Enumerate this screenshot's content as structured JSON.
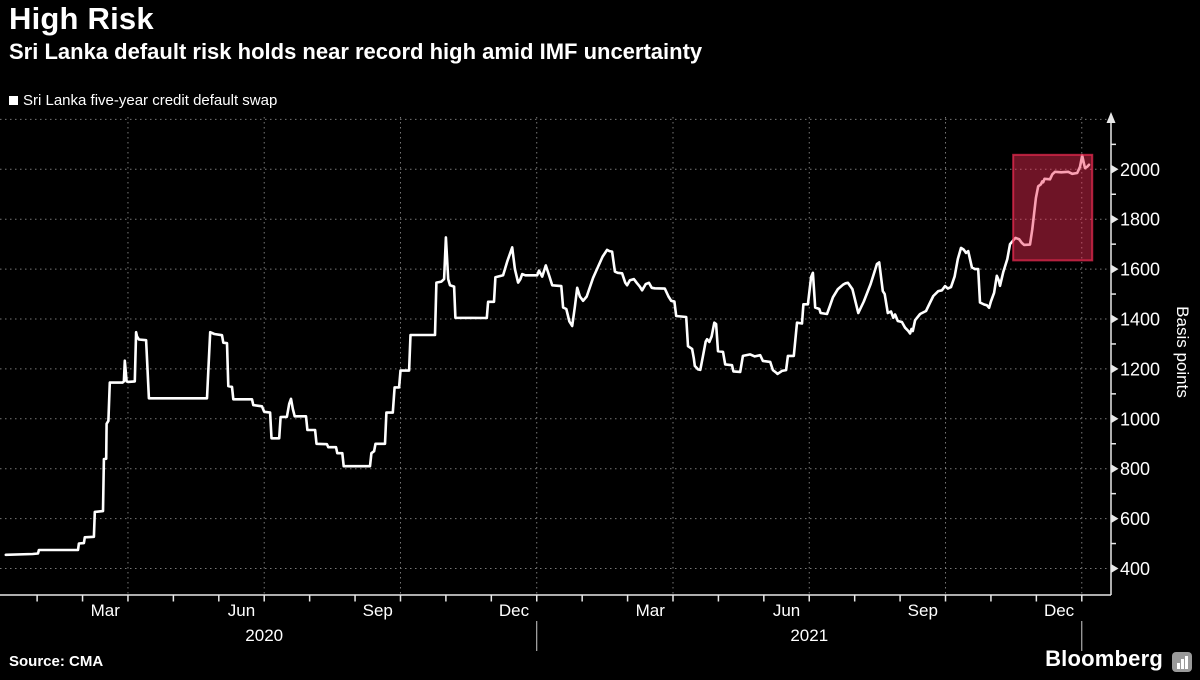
{
  "header": {
    "title": "High Risk",
    "subtitle": "Sri Lanka default risk holds near record high amid IMF uncertainty"
  },
  "legend": {
    "label": "Sri Lanka five-year credit default swap",
    "marker_color": "#ffffff"
  },
  "footer": {
    "source": "Source: CMA",
    "brand": "Bloomberg"
  },
  "colors": {
    "background": "#000000",
    "series_line": "#ffffff",
    "grid": "#787878",
    "axis": "#e8e8e8",
    "text": "#ffffff",
    "highlight_fill": "rgba(244,44,84,0.45)",
    "highlight_stroke": "rgba(244,44,84,0.7)"
  },
  "chart_data": {
    "type": "line",
    "title": "High Risk",
    "subtitle": "Sri Lanka default risk holds near record high amid IMF uncertainty",
    "ylabel": "Basis points",
    "x_unit": "months since Jan 2020 (0 = Jan 1 2020)",
    "ylim": [
      300,
      2200
    ],
    "xlim_months": [
      0,
      24.5
    ],
    "grid": true,
    "legend_position": "top-left",
    "y_tick_labels": [
      400,
      600,
      800,
      1000,
      1200,
      1400,
      1600,
      1800,
      2000
    ],
    "y_minor_ticks": [
      500,
      700,
      900,
      1100,
      1300,
      1500,
      1700,
      1900,
      2100
    ],
    "grid_values_y": [
      400,
      600,
      800,
      1000,
      1200,
      1400,
      1600,
      1800,
      2000,
      2200
    ],
    "grid_months_x": [
      3,
      6,
      9,
      12,
      15,
      18,
      21,
      24
    ],
    "month_ticks": [
      1,
      2,
      3,
      4,
      5,
      6,
      7,
      8,
      9,
      10,
      11,
      12,
      13,
      14,
      15,
      16,
      17,
      18,
      19,
      20,
      21,
      22,
      23,
      24
    ],
    "year_separators_m": [
      12,
      24
    ],
    "x_labels": [
      {
        "label": "Mar",
        "m": 2.5
      },
      {
        "label": "Jun",
        "m": 5.5
      },
      {
        "label": "Sep",
        "m": 8.5
      },
      {
        "label": "Dec",
        "m": 11.5
      },
      {
        "label": "Mar",
        "m": 14.5
      },
      {
        "label": "Jun",
        "m": 17.5
      },
      {
        "label": "Sep",
        "m": 20.5
      },
      {
        "label": "Dec",
        "m": 23.5
      }
    ],
    "year_labels": [
      {
        "label": "2020",
        "m": 6.0
      },
      {
        "label": "2021",
        "m": 18.0
      }
    ],
    "highlight_box": {
      "m_start": 22.49,
      "m_end": 24.23,
      "v_low": 1635,
      "v_high": 2058
    },
    "series": [
      {
        "name": "Sri Lanka five-year credit default swap",
        "color": "#ffffff",
        "points": [
          [
            0.31,
            455
          ],
          [
            0.9,
            458
          ],
          [
            1.02,
            460
          ],
          [
            1.04,
            474
          ],
          [
            1.9,
            474
          ],
          [
            1.92,
            500
          ],
          [
            2.03,
            502
          ],
          [
            2.05,
            525
          ],
          [
            2.25,
            527
          ],
          [
            2.27,
            627
          ],
          [
            2.45,
            630
          ],
          [
            2.47,
            838
          ],
          [
            2.52,
            840
          ],
          [
            2.53,
            980
          ],
          [
            2.57,
            992
          ],
          [
            2.6,
            1145
          ],
          [
            2.88,
            1145
          ],
          [
            2.91,
            1150
          ],
          [
            2.93,
            1233
          ],
          [
            2.97,
            1150
          ],
          [
            3.0,
            1148
          ],
          [
            3.15,
            1150
          ],
          [
            3.18,
            1347
          ],
          [
            3.2,
            1330
          ],
          [
            3.24,
            1318
          ],
          [
            3.4,
            1315
          ],
          [
            3.43,
            1200
          ],
          [
            3.46,
            1082
          ],
          [
            4.74,
            1082
          ],
          [
            4.77,
            1200
          ],
          [
            4.81,
            1347
          ],
          [
            4.9,
            1340
          ],
          [
            5.07,
            1335
          ],
          [
            5.1,
            1305
          ],
          [
            5.18,
            1303
          ],
          [
            5.21,
            1131
          ],
          [
            5.29,
            1128
          ],
          [
            5.32,
            1078
          ],
          [
            5.73,
            1078
          ],
          [
            5.76,
            1055
          ],
          [
            5.95,
            1050
          ],
          [
            6.0,
            1028
          ],
          [
            6.13,
            1025
          ],
          [
            6.16,
            922
          ],
          [
            6.33,
            922
          ],
          [
            6.36,
            1007
          ],
          [
            6.5,
            1008
          ],
          [
            6.55,
            1060
          ],
          [
            6.59,
            1080
          ],
          [
            6.63,
            1040
          ],
          [
            6.67,
            1010
          ],
          [
            6.92,
            1010
          ],
          [
            6.95,
            955
          ],
          [
            7.12,
            955
          ],
          [
            7.15,
            900
          ],
          [
            7.38,
            898
          ],
          [
            7.41,
            886
          ],
          [
            7.58,
            886
          ],
          [
            7.61,
            862
          ],
          [
            7.72,
            862
          ],
          [
            7.75,
            810
          ],
          [
            8.33,
            810
          ],
          [
            8.36,
            862
          ],
          [
            8.42,
            870
          ],
          [
            8.45,
            900
          ],
          [
            8.66,
            900
          ],
          [
            8.69,
            1025
          ],
          [
            8.83,
            1025
          ],
          [
            8.87,
            1126
          ],
          [
            8.97,
            1126
          ],
          [
            9.0,
            1193
          ],
          [
            9.19,
            1193
          ],
          [
            9.22,
            1336
          ],
          [
            9.76,
            1336
          ],
          [
            9.79,
            1546
          ],
          [
            9.9,
            1550
          ],
          [
            9.96,
            1560
          ],
          [
            10.0,
            1727
          ],
          [
            10.05,
            1560
          ],
          [
            10.09,
            1535
          ],
          [
            10.18,
            1530
          ],
          [
            10.21,
            1405
          ],
          [
            10.9,
            1404
          ],
          [
            10.93,
            1469
          ],
          [
            11.06,
            1469
          ],
          [
            11.09,
            1567
          ],
          [
            11.26,
            1575
          ],
          [
            11.35,
            1630
          ],
          [
            11.46,
            1687
          ],
          [
            11.52,
            1600
          ],
          [
            11.59,
            1546
          ],
          [
            11.64,
            1560
          ],
          [
            11.68,
            1580
          ],
          [
            11.75,
            1575
          ],
          [
            12.01,
            1575
          ],
          [
            12.05,
            1594
          ],
          [
            12.12,
            1570
          ],
          [
            12.2,
            1615
          ],
          [
            12.28,
            1570
          ],
          [
            12.34,
            1535
          ],
          [
            12.54,
            1532
          ],
          [
            12.58,
            1446
          ],
          [
            12.65,
            1440
          ],
          [
            12.72,
            1390
          ],
          [
            12.78,
            1372
          ],
          [
            12.84,
            1450
          ],
          [
            12.89,
            1525
          ],
          [
            12.95,
            1490
          ],
          [
            13.02,
            1473
          ],
          [
            13.1,
            1490
          ],
          [
            13.24,
            1565
          ],
          [
            13.35,
            1610
          ],
          [
            13.45,
            1650
          ],
          [
            13.55,
            1677
          ],
          [
            13.6,
            1672
          ],
          [
            13.66,
            1670
          ],
          [
            13.72,
            1590
          ],
          [
            13.78,
            1585
          ],
          [
            13.88,
            1583
          ],
          [
            13.95,
            1545
          ],
          [
            13.99,
            1535
          ],
          [
            14.05,
            1555
          ],
          [
            14.14,
            1560
          ],
          [
            14.2,
            1545
          ],
          [
            14.27,
            1530
          ],
          [
            14.32,
            1515
          ],
          [
            14.4,
            1540
          ],
          [
            14.47,
            1545
          ],
          [
            14.53,
            1525
          ],
          [
            14.6,
            1523
          ],
          [
            14.82,
            1522
          ],
          [
            14.9,
            1490
          ],
          [
            14.96,
            1473
          ],
          [
            15.03,
            1470
          ],
          [
            15.07,
            1412
          ],
          [
            15.29,
            1408
          ],
          [
            15.33,
            1291
          ],
          [
            15.42,
            1280
          ],
          [
            15.46,
            1240
          ],
          [
            15.48,
            1212
          ],
          [
            15.55,
            1198
          ],
          [
            15.6,
            1196
          ],
          [
            15.66,
            1252
          ],
          [
            15.72,
            1310
          ],
          [
            15.75,
            1319
          ],
          [
            15.8,
            1308
          ],
          [
            15.85,
            1330
          ],
          [
            15.91,
            1385
          ],
          [
            15.95,
            1380
          ],
          [
            15.99,
            1271
          ],
          [
            16.1,
            1268
          ],
          [
            16.15,
            1218
          ],
          [
            16.3,
            1215
          ],
          [
            16.33,
            1190
          ],
          [
            16.48,
            1188
          ],
          [
            16.54,
            1252
          ],
          [
            16.7,
            1258
          ],
          [
            16.8,
            1250
          ],
          [
            16.92,
            1255
          ],
          [
            16.98,
            1232
          ],
          [
            17.14,
            1228
          ],
          [
            17.2,
            1195
          ],
          [
            17.27,
            1185
          ],
          [
            17.3,
            1180
          ],
          [
            17.4,
            1192
          ],
          [
            17.49,
            1195
          ],
          [
            17.53,
            1252
          ],
          [
            17.66,
            1252
          ],
          [
            17.73,
            1385
          ],
          [
            17.84,
            1382
          ],
          [
            17.87,
            1459
          ],
          [
            17.97,
            1459
          ],
          [
            18.04,
            1568
          ],
          [
            18.08,
            1585
          ],
          [
            18.13,
            1446
          ],
          [
            18.22,
            1440
          ],
          [
            18.25,
            1424
          ],
          [
            18.39,
            1420
          ],
          [
            18.45,
            1450
          ],
          [
            18.52,
            1487
          ],
          [
            18.63,
            1520
          ],
          [
            18.74,
            1537
          ],
          [
            18.8,
            1543
          ],
          [
            18.85,
            1545
          ],
          [
            18.95,
            1520
          ],
          [
            19.05,
            1445
          ],
          [
            19.08,
            1424
          ],
          [
            19.2,
            1470
          ],
          [
            19.35,
            1540
          ],
          [
            19.49,
            1620
          ],
          [
            19.54,
            1627
          ],
          [
            19.62,
            1512
          ],
          [
            19.66,
            1500
          ],
          [
            19.73,
            1424
          ],
          [
            19.8,
            1430
          ],
          [
            19.85,
            1405
          ],
          [
            19.89,
            1418
          ],
          [
            19.95,
            1392
          ],
          [
            20.04,
            1388
          ],
          [
            20.11,
            1365
          ],
          [
            20.18,
            1352
          ],
          [
            20.22,
            1342
          ],
          [
            20.25,
            1360
          ],
          [
            20.28,
            1352
          ],
          [
            20.33,
            1395
          ],
          [
            20.44,
            1420
          ],
          [
            20.57,
            1432
          ],
          [
            20.66,
            1466
          ],
          [
            20.73,
            1492
          ],
          [
            20.84,
            1512
          ],
          [
            20.92,
            1515
          ],
          [
            20.99,
            1532
          ],
          [
            21.05,
            1522
          ],
          [
            21.12,
            1528
          ],
          [
            21.2,
            1570
          ],
          [
            21.27,
            1640
          ],
          [
            21.34,
            1685
          ],
          [
            21.4,
            1678
          ],
          [
            21.45,
            1665
          ],
          [
            21.5,
            1672
          ],
          [
            21.58,
            1607
          ],
          [
            21.65,
            1600
          ],
          [
            21.72,
            1600
          ],
          [
            21.76,
            1466
          ],
          [
            21.85,
            1458
          ],
          [
            21.91,
            1455
          ],
          [
            21.96,
            1445
          ],
          [
            22.0,
            1470
          ],
          [
            22.07,
            1505
          ],
          [
            22.13,
            1573
          ],
          [
            22.17,
            1555
          ],
          [
            22.2,
            1533
          ],
          [
            22.27,
            1587
          ],
          [
            22.36,
            1640
          ],
          [
            22.42,
            1700
          ],
          [
            22.49,
            1715
          ],
          [
            22.54,
            1725
          ],
          [
            22.62,
            1720
          ],
          [
            22.68,
            1705
          ],
          [
            22.73,
            1697
          ],
          [
            22.86,
            1698
          ],
          [
            22.91,
            1760
          ],
          [
            22.99,
            1885
          ],
          [
            23.04,
            1932
          ],
          [
            23.1,
            1940
          ],
          [
            23.13,
            1952
          ],
          [
            23.15,
            1948
          ],
          [
            23.18,
            1962
          ],
          [
            23.3,
            1960
          ],
          [
            23.35,
            1980
          ],
          [
            23.41,
            1990
          ],
          [
            23.55,
            1988
          ],
          [
            23.7,
            1990
          ],
          [
            23.79,
            1982
          ],
          [
            23.9,
            1985
          ],
          [
            23.96,
            2010
          ],
          [
            24.01,
            2055
          ],
          [
            24.05,
            2020
          ],
          [
            24.07,
            2005
          ],
          [
            24.12,
            2010
          ],
          [
            24.16,
            2018
          ]
        ]
      }
    ]
  }
}
